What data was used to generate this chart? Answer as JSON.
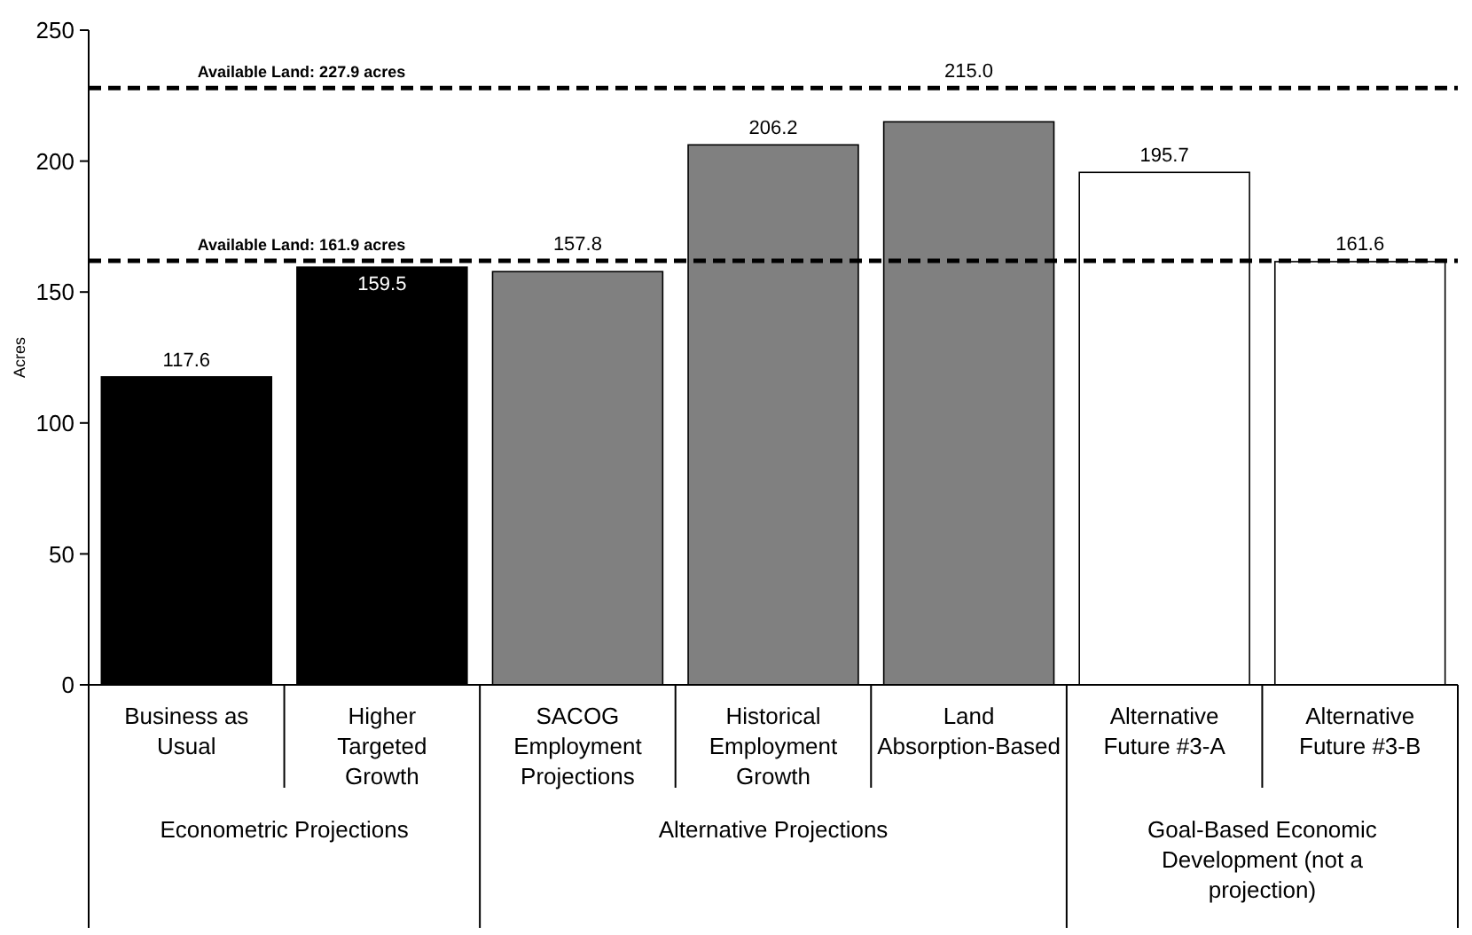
{
  "chart_data": {
    "type": "bar",
    "ylabel": "Acres",
    "categories": [
      "Business as Usual",
      "Higher Targeted Growth",
      "SACOG Employment Projections",
      "Historical Employment Growth",
      "Land Absorption-Based",
      "Alternative Future #3-A",
      "Alternative Future #3-B"
    ],
    "values": [
      117.6,
      159.5,
      157.8,
      206.2,
      215.0,
      195.7,
      161.6
    ],
    "colors": [
      "#000000",
      "#000000",
      "#808080",
      "#808080",
      "#808080",
      "#ffffff",
      "#ffffff"
    ],
    "value_labels": [
      "117.6",
      "159.5",
      "157.8",
      "206.2",
      "215.0",
      "195.7",
      "161.6"
    ],
    "ylim": [
      0,
      250
    ],
    "yticks": [
      0,
      50,
      100,
      150,
      200,
      250
    ],
    "ref_lines": [
      {
        "axis": "y",
        "value": 227.9,
        "label": "Available Land: 227.9 acres",
        "color": "#000000",
        "line_style": "dashed"
      },
      {
        "axis": "y",
        "value": 161.9,
        "label": "Available Land: 161.9 acres",
        "color": "#000000",
        "line_style": "dashed"
      }
    ],
    "annotations": [
      "Econometric Projections",
      "Alternative Projections",
      "Goal-Based Economic Development (not a projection)"
    ]
  }
}
